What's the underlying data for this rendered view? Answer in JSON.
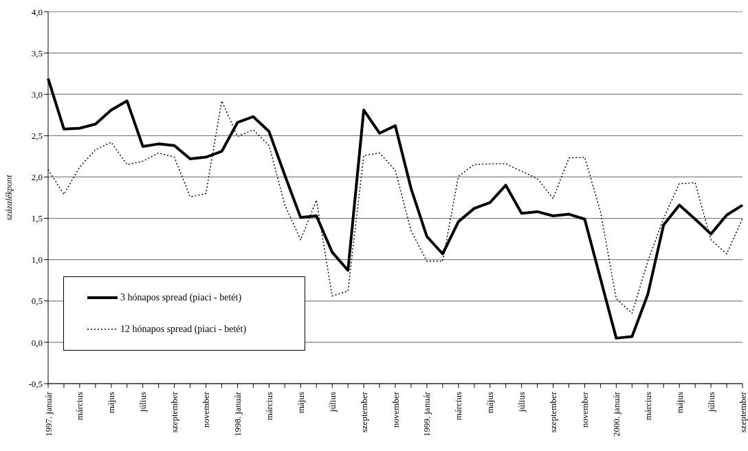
{
  "chart_data": {
    "type": "line",
    "ylabel": "százalékpont",
    "categories": [
      "1997. január",
      null,
      "március",
      null,
      "május",
      null,
      "július",
      null,
      "szeptember",
      null,
      "november",
      null,
      "1998. január",
      null,
      "március",
      null,
      "május",
      null,
      "július",
      null,
      "szeptember",
      null,
      "november",
      null,
      "1999. január",
      null,
      "március",
      null,
      "május",
      null,
      "július",
      null,
      "szeptember",
      null,
      "november",
      null,
      "2000. január",
      null,
      "március",
      null,
      "május",
      null,
      "július",
      null,
      "szeptember"
    ],
    "series": [
      {
        "name": "3 hónapos spread (piaci - betét)",
        "color": "#000000",
        "line_style": "solid",
        "values": [
          3.19,
          2.58,
          2.59,
          2.64,
          2.81,
          2.92,
          2.37,
          2.4,
          2.38,
          2.22,
          2.24,
          2.31,
          2.66,
          2.73,
          2.55,
          2.02,
          1.51,
          1.53,
          1.09,
          0.87,
          2.81,
          2.53,
          2.62,
          1.86,
          1.28,
          1.07,
          1.46,
          1.62,
          1.69,
          1.9,
          1.56,
          1.58,
          1.53,
          1.55,
          1.49,
          0.77,
          0.05,
          0.07,
          0.58,
          1.42,
          1.66,
          1.49,
          1.31,
          1.54,
          1.66
        ]
      },
      {
        "name": "12 hónapos spread (piaci - betét)",
        "color": "#000000",
        "line_style": "dotted",
        "values": [
          2.09,
          1.79,
          2.12,
          2.33,
          2.42,
          2.15,
          2.19,
          2.29,
          2.24,
          1.76,
          1.8,
          2.92,
          2.49,
          2.57,
          2.38,
          1.66,
          1.24,
          1.72,
          0.56,
          0.62,
          2.26,
          2.29,
          2.08,
          1.35,
          0.98,
          0.98,
          2.01,
          2.15,
          2.16,
          2.16,
          2.07,
          1.98,
          1.74,
          2.23,
          2.24,
          1.58,
          0.53,
          0.35,
          0.98,
          1.5,
          1.92,
          1.93,
          1.24,
          1.07,
          1.5
        ]
      }
    ],
    "ylim": [
      -0.5,
      4
    ],
    "yticks": [
      {
        "value": -0.5,
        "label": "-0,5"
      },
      {
        "value": 0,
        "label": "0,0"
      },
      {
        "value": 0.5,
        "label": "0,5"
      },
      {
        "value": 1,
        "label": "1,0"
      },
      {
        "value": 1.5,
        "label": "1,5"
      },
      {
        "value": 2,
        "label": "2,0"
      },
      {
        "value": 2.5,
        "label": "2,5"
      },
      {
        "value": 3,
        "label": "3,0"
      },
      {
        "value": 3.5,
        "label": "3,5"
      },
      {
        "value": 4,
        "label": "4,0"
      }
    ],
    "grid": "y",
    "legend": "bottom left",
    "marker": "none"
  }
}
